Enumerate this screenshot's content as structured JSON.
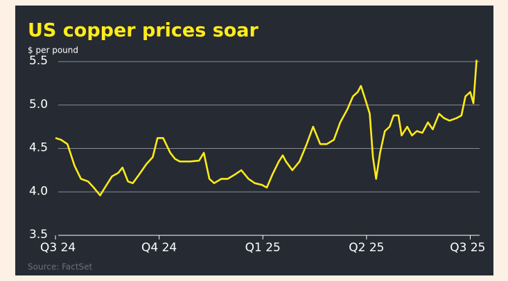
{
  "chart_data": {
    "type": "line",
    "title": "US copper prices soar",
    "subtitle": "$ per pound",
    "source": "Source: FactSet",
    "x": [
      0,
      0.7,
      1.5,
      2.4,
      3.2,
      4.1,
      4.8,
      5.6,
      6.2,
      7.1,
      7.9,
      8.4,
      9.1,
      9.7,
      10.5,
      11.4,
      12.2,
      12.8,
      13.5,
      14.4,
      15,
      15.6,
      16.9,
      18,
      18.6,
      19.3,
      19.9,
      20.8,
      21.6,
      22.5,
      23.3,
      24.2,
      25,
      25.9,
      26.5,
      27.2,
      28,
      28.5,
      28.9,
      29.7,
      30.6,
      31.5,
      32.3,
      33.2,
      34,
      34.9,
      35.7,
      36.6,
      37.3,
      37.9,
      38.3,
      38.9,
      39.4,
      39.8,
      40.2,
      40.7,
      41.3,
      41.9,
      42.4,
      43,
      43.4,
      44.1,
      44.7,
      45.3,
      46,
      46.7,
      47.3,
      48.1,
      48.7,
      49.4,
      50.3,
      50.9,
      51.4,
      52,
      52.4,
      52.8
    ],
    "series": [
      {
        "name": "Copper",
        "color": "#ffec1a",
        "values": [
          4.62,
          4.6,
          4.55,
          4.3,
          4.15,
          4.12,
          4.05,
          3.96,
          4.05,
          4.18,
          4.22,
          4.28,
          4.12,
          4.1,
          4.2,
          4.32,
          4.4,
          4.62,
          4.62,
          4.45,
          4.38,
          4.35,
          4.35,
          4.36,
          4.45,
          4.15,
          4.1,
          4.15,
          4.15,
          4.2,
          4.25,
          4.15,
          4.1,
          4.08,
          4.05,
          4.2,
          4.35,
          4.42,
          4.35,
          4.25,
          4.35,
          4.55,
          4.75,
          4.55,
          4.55,
          4.6,
          4.8,
          4.95,
          5.1,
          5.15,
          5.22,
          5.05,
          4.9,
          4.4,
          4.15,
          4.45,
          4.7,
          4.75,
          4.88,
          4.88,
          4.65,
          4.75,
          4.65,
          4.7,
          4.68,
          4.8,
          4.72,
          4.9,
          4.85,
          4.82,
          4.85,
          4.88,
          5.1,
          5.15,
          5.02,
          5.52
        ]
      }
    ],
    "xlim": [
      0,
      53
    ],
    "xticks": [
      {
        "value": 0,
        "label": "Q3 24"
      },
      {
        "value": 13,
        "label": "Q4 24"
      },
      {
        "value": 26,
        "label": "Q1 25"
      },
      {
        "value": 39,
        "label": "Q2 25"
      },
      {
        "value": 52,
        "label": "Q3 25"
      }
    ],
    "ylim": [
      3.5,
      5.5
    ],
    "yticks": [
      3.5,
      {
        "value": 4,
        "label": "4.0"
      },
      4.5,
      {
        "value": 5,
        "label": "5.0"
      },
      5.5
    ],
    "grid": true
  }
}
